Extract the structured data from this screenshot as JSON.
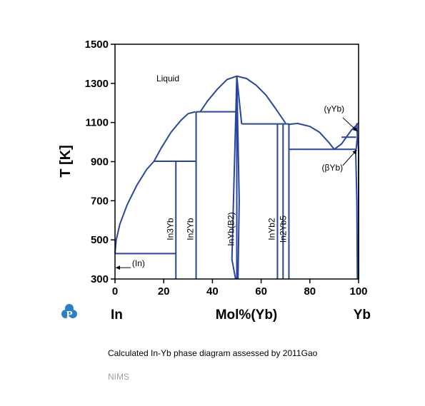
{
  "chart_data": {
    "type": "phase-diagram",
    "system": "In-Yb",
    "ylabel": "T [K]",
    "xlabel": "Mol%(Yb)",
    "left_element": "In",
    "right_element": "Yb",
    "xlim": [
      0,
      100
    ],
    "ylim": [
      300,
      1500
    ],
    "x_ticks": [
      0,
      20,
      40,
      60,
      80,
      100
    ],
    "y_ticks": [
      300,
      500,
      700,
      900,
      1100,
      1300,
      1500
    ],
    "line_color": "#2846a0",
    "liquidus": [
      {
        "name": "In-side",
        "points": [
          [
            0,
            430
          ],
          [
            0.5,
            500
          ],
          [
            2,
            580
          ],
          [
            5,
            680
          ],
          [
            9,
            780
          ],
          [
            13,
            860
          ],
          [
            16,
            902
          ],
          [
            19,
            970
          ],
          [
            23,
            1050
          ],
          [
            27,
            1110
          ],
          [
            30,
            1145
          ],
          [
            33,
            1155
          ]
        ]
      },
      {
        "name": "InYb dome",
        "points": [
          [
            35,
            1155
          ],
          [
            38,
            1210
          ],
          [
            42,
            1270
          ],
          [
            46,
            1320
          ],
          [
            50,
            1337
          ],
          [
            54,
            1325
          ],
          [
            58,
            1290
          ],
          [
            62,
            1240
          ],
          [
            66,
            1170
          ],
          [
            70,
            1097
          ]
        ]
      },
      {
        "name": "Yb-rich",
        "points": [
          [
            71,
            1090
          ],
          [
            75,
            1095
          ],
          [
            80,
            1080
          ],
          [
            84,
            1050
          ],
          [
            88,
            995
          ],
          [
            90,
            963
          ],
          [
            93,
            990
          ],
          [
            95,
            1025
          ],
          [
            97,
            1060
          ],
          [
            100,
            1097
          ]
        ]
      }
    ],
    "horizontals": [
      {
        "x": [
          0,
          25
        ],
        "y": 430
      },
      {
        "x": [
          16,
          33.3
        ],
        "y": 902
      },
      {
        "x": [
          33.3,
          50
        ],
        "y": 1155
      },
      {
        "x": [
          52,
          71.4
        ],
        "y": 1093
      },
      {
        "x": [
          71.4,
          99
        ],
        "y": 963
      },
      {
        "x": [
          93,
          99
        ],
        "y": 1025
      }
    ],
    "compounds": [
      {
        "name": "In3Yb",
        "x": 25,
        "y_top": 902
      },
      {
        "name": "In2Yb",
        "x": 33.3,
        "y_top": 1155
      },
      {
        "name": "InYb(B2)",
        "x": 50,
        "y_top": 1337
      },
      {
        "name": "InYb2",
        "x": 66.7,
        "y_top": 1093
      },
      {
        "name": "In2Yb5",
        "x": 71.4,
        "y_top": 1093
      }
    ],
    "annotations": [
      {
        "text": "Liquid",
        "x": 17,
        "y": 1310
      },
      {
        "text": "(In)",
        "x": 7,
        "y": 365
      },
      {
        "text": "(γYb)",
        "x": 93,
        "y": 1155
      },
      {
        "text": "(βYb)",
        "x": 93,
        "y": 855
      }
    ]
  },
  "caption": "Calculated In-Yb phase diagram assessed by 2011Gao",
  "footer": "NIMS",
  "logo_letter": "P",
  "logo_color": "#2a7fc8"
}
